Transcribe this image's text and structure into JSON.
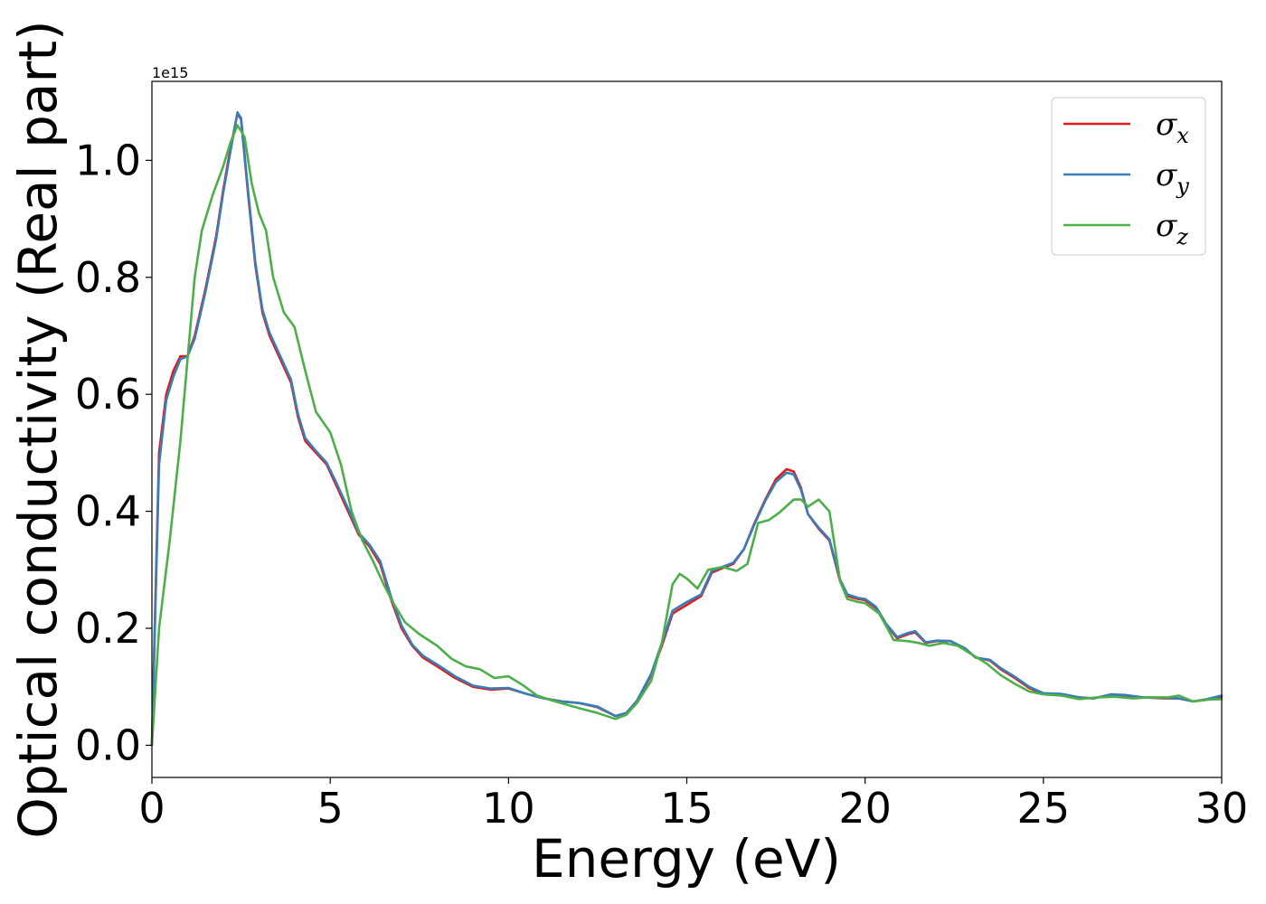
{
  "chart_data": {
    "type": "line",
    "xlabel": "Energy (eV)",
    "ylabel": "Optical conductivity (Real part)",
    "y_offset_label": "1e15",
    "xlim": [
      0,
      30
    ],
    "ylim": [
      -0.055,
      1.135
    ],
    "x_ticks": [
      0,
      5,
      10,
      15,
      20,
      25,
      30
    ],
    "x_tick_labels": [
      "0",
      "5",
      "10",
      "15",
      "20",
      "25",
      "30"
    ],
    "y_ticks": [
      0.0,
      0.2,
      0.4,
      0.6,
      0.8,
      1.0
    ],
    "y_tick_labels": [
      "0.0",
      "0.2",
      "0.4",
      "0.6",
      "0.8",
      "1.0"
    ],
    "grid": false,
    "legend_position": "top-right",
    "series": [
      {
        "name": "σx",
        "legend_symbol": "σ",
        "legend_subscript": "x",
        "color": "#e41a1c",
        "points": [
          [
            0,
            0
          ],
          [
            0.1,
            0.25
          ],
          [
            0.2,
            0.5
          ],
          [
            0.4,
            0.6
          ],
          [
            0.6,
            0.64
          ],
          [
            0.8,
            0.665
          ],
          [
            1.0,
            0.665
          ],
          [
            1.2,
            0.7
          ],
          [
            1.5,
            0.78
          ],
          [
            1.8,
            0.87
          ],
          [
            2.0,
            0.95
          ],
          [
            2.2,
            1.02
          ],
          [
            2.4,
            1.08
          ],
          [
            2.5,
            1.07
          ],
          [
            2.7,
            0.94
          ],
          [
            2.9,
            0.82
          ],
          [
            3.1,
            0.74
          ],
          [
            3.3,
            0.7
          ],
          [
            3.6,
            0.66
          ],
          [
            3.9,
            0.62
          ],
          [
            4.1,
            0.56
          ],
          [
            4.3,
            0.52
          ],
          [
            4.6,
            0.5
          ],
          [
            4.9,
            0.48
          ],
          [
            5.2,
            0.44
          ],
          [
            5.5,
            0.4
          ],
          [
            5.8,
            0.36
          ],
          [
            6.1,
            0.34
          ],
          [
            6.4,
            0.31
          ],
          [
            6.7,
            0.25
          ],
          [
            7.0,
            0.2
          ],
          [
            7.3,
            0.17
          ],
          [
            7.6,
            0.15
          ],
          [
            8.0,
            0.135
          ],
          [
            8.5,
            0.115
          ],
          [
            9.0,
            0.1
          ],
          [
            9.5,
            0.095
          ],
          [
            10.0,
            0.097
          ],
          [
            10.5,
            0.088
          ],
          [
            11.0,
            0.08
          ],
          [
            11.5,
            0.075
          ],
          [
            12.0,
            0.072
          ],
          [
            12.5,
            0.065
          ],
          [
            13.0,
            0.05
          ],
          [
            13.3,
            0.055
          ],
          [
            13.6,
            0.075
          ],
          [
            14.0,
            0.12
          ],
          [
            14.3,
            0.17
          ],
          [
            14.6,
            0.225
          ],
          [
            15.0,
            0.24
          ],
          [
            15.4,
            0.255
          ],
          [
            15.7,
            0.295
          ],
          [
            16.0,
            0.303
          ],
          [
            16.3,
            0.31
          ],
          [
            16.6,
            0.335
          ],
          [
            16.9,
            0.38
          ],
          [
            17.2,
            0.42
          ],
          [
            17.5,
            0.455
          ],
          [
            17.8,
            0.472
          ],
          [
            18.0,
            0.468
          ],
          [
            18.2,
            0.44
          ],
          [
            18.4,
            0.395
          ],
          [
            18.7,
            0.37
          ],
          [
            19.0,
            0.35
          ],
          [
            19.3,
            0.28
          ],
          [
            19.5,
            0.255
          ],
          [
            19.8,
            0.25
          ],
          [
            20.0,
            0.248
          ],
          [
            20.3,
            0.235
          ],
          [
            20.6,
            0.205
          ],
          [
            20.9,
            0.183
          ],
          [
            21.2,
            0.19
          ],
          [
            21.4,
            0.193
          ],
          [
            21.7,
            0.175
          ],
          [
            22.0,
            0.178
          ],
          [
            22.4,
            0.178
          ],
          [
            22.8,
            0.165
          ],
          [
            23.1,
            0.15
          ],
          [
            23.5,
            0.145
          ],
          [
            23.8,
            0.13
          ],
          [
            24.2,
            0.115
          ],
          [
            24.6,
            0.098
          ],
          [
            25.0,
            0.088
          ],
          [
            25.5,
            0.087
          ],
          [
            26.0,
            0.082
          ],
          [
            26.4,
            0.08
          ],
          [
            26.9,
            0.087
          ],
          [
            27.3,
            0.085
          ],
          [
            27.8,
            0.082
          ],
          [
            28.4,
            0.08
          ],
          [
            28.8,
            0.08
          ],
          [
            29.2,
            0.075
          ],
          [
            29.6,
            0.078
          ],
          [
            30.0,
            0.083
          ]
        ]
      },
      {
        "name": "σy",
        "legend_symbol": "σ",
        "legend_subscript": "y",
        "color": "#377eb8",
        "points": [
          [
            0,
            0
          ],
          [
            0.1,
            0.24
          ],
          [
            0.2,
            0.48
          ],
          [
            0.4,
            0.59
          ],
          [
            0.6,
            0.63
          ],
          [
            0.8,
            0.66
          ],
          [
            1.0,
            0.665
          ],
          [
            1.2,
            0.695
          ],
          [
            1.5,
            0.775
          ],
          [
            1.8,
            0.865
          ],
          [
            2.0,
            0.945
          ],
          [
            2.2,
            1.015
          ],
          [
            2.4,
            1.082
          ],
          [
            2.5,
            1.072
          ],
          [
            2.7,
            0.945
          ],
          [
            2.9,
            0.825
          ],
          [
            3.1,
            0.745
          ],
          [
            3.3,
            0.705
          ],
          [
            3.6,
            0.665
          ],
          [
            3.9,
            0.625
          ],
          [
            4.1,
            0.565
          ],
          [
            4.3,
            0.525
          ],
          [
            4.6,
            0.503
          ],
          [
            4.9,
            0.483
          ],
          [
            5.2,
            0.445
          ],
          [
            5.5,
            0.405
          ],
          [
            5.8,
            0.363
          ],
          [
            6.1,
            0.343
          ],
          [
            6.4,
            0.315
          ],
          [
            6.7,
            0.255
          ],
          [
            7.0,
            0.205
          ],
          [
            7.3,
            0.172
          ],
          [
            7.6,
            0.153
          ],
          [
            8.0,
            0.138
          ],
          [
            8.5,
            0.118
          ],
          [
            9.0,
            0.102
          ],
          [
            9.5,
            0.097
          ],
          [
            10.0,
            0.098
          ],
          [
            10.5,
            0.088
          ],
          [
            11.0,
            0.08
          ],
          [
            11.5,
            0.075
          ],
          [
            12.0,
            0.072
          ],
          [
            12.5,
            0.066
          ],
          [
            13.0,
            0.05
          ],
          [
            13.3,
            0.055
          ],
          [
            13.6,
            0.076
          ],
          [
            14.0,
            0.122
          ],
          [
            14.3,
            0.175
          ],
          [
            14.6,
            0.23
          ],
          [
            15.0,
            0.245
          ],
          [
            15.4,
            0.258
          ],
          [
            15.7,
            0.298
          ],
          [
            16.0,
            0.305
          ],
          [
            16.3,
            0.312
          ],
          [
            16.6,
            0.335
          ],
          [
            16.9,
            0.378
          ],
          [
            17.2,
            0.418
          ],
          [
            17.5,
            0.45
          ],
          [
            17.8,
            0.466
          ],
          [
            18.0,
            0.463
          ],
          [
            18.2,
            0.437
          ],
          [
            18.4,
            0.395
          ],
          [
            18.7,
            0.372
          ],
          [
            19.0,
            0.352
          ],
          [
            19.3,
            0.283
          ],
          [
            19.5,
            0.258
          ],
          [
            19.8,
            0.252
          ],
          [
            20.0,
            0.25
          ],
          [
            20.3,
            0.237
          ],
          [
            20.6,
            0.207
          ],
          [
            20.9,
            0.185
          ],
          [
            21.2,
            0.192
          ],
          [
            21.4,
            0.195
          ],
          [
            21.7,
            0.176
          ],
          [
            22.0,
            0.179
          ],
          [
            22.4,
            0.178
          ],
          [
            22.8,
            0.166
          ],
          [
            23.1,
            0.15
          ],
          [
            23.5,
            0.146
          ],
          [
            23.8,
            0.132
          ],
          [
            24.2,
            0.117
          ],
          [
            24.6,
            0.1
          ],
          [
            25.0,
            0.089
          ],
          [
            25.5,
            0.088
          ],
          [
            26.0,
            0.082
          ],
          [
            26.4,
            0.08
          ],
          [
            26.9,
            0.087
          ],
          [
            27.3,
            0.086
          ],
          [
            27.8,
            0.082
          ],
          [
            28.4,
            0.081
          ],
          [
            28.8,
            0.08
          ],
          [
            29.2,
            0.075
          ],
          [
            29.6,
            0.079
          ],
          [
            30.0,
            0.085
          ]
        ]
      },
      {
        "name": "σz",
        "legend_symbol": "σ",
        "legend_subscript": "z",
        "color": "#4daf4a",
        "points": [
          [
            0,
            0
          ],
          [
            0.2,
            0.2
          ],
          [
            0.5,
            0.35
          ],
          [
            0.8,
            0.52
          ],
          [
            1.0,
            0.66
          ],
          [
            1.2,
            0.8
          ],
          [
            1.4,
            0.88
          ],
          [
            1.7,
            0.94
          ],
          [
            2.0,
            0.99
          ],
          [
            2.2,
            1.03
          ],
          [
            2.4,
            1.06
          ],
          [
            2.6,
            1.04
          ],
          [
            2.8,
            0.96
          ],
          [
            3.0,
            0.91
          ],
          [
            3.2,
            0.88
          ],
          [
            3.4,
            0.8
          ],
          [
            3.7,
            0.74
          ],
          [
            4.0,
            0.715
          ],
          [
            4.3,
            0.64
          ],
          [
            4.6,
            0.57
          ],
          [
            5.0,
            0.535
          ],
          [
            5.3,
            0.48
          ],
          [
            5.6,
            0.4
          ],
          [
            5.9,
            0.35
          ],
          [
            6.2,
            0.315
          ],
          [
            6.5,
            0.275
          ],
          [
            6.8,
            0.24
          ],
          [
            7.1,
            0.21
          ],
          [
            7.5,
            0.19
          ],
          [
            8.0,
            0.17
          ],
          [
            8.4,
            0.148
          ],
          [
            8.8,
            0.135
          ],
          [
            9.2,
            0.13
          ],
          [
            9.6,
            0.115
          ],
          [
            10.0,
            0.118
          ],
          [
            10.4,
            0.103
          ],
          [
            10.8,
            0.085
          ],
          [
            11.2,
            0.077
          ],
          [
            11.6,
            0.07
          ],
          [
            12.0,
            0.063
          ],
          [
            12.5,
            0.055
          ],
          [
            13.0,
            0.045
          ],
          [
            13.3,
            0.052
          ],
          [
            13.6,
            0.072
          ],
          [
            14.0,
            0.11
          ],
          [
            14.3,
            0.175
          ],
          [
            14.6,
            0.275
          ],
          [
            14.8,
            0.293
          ],
          [
            15.0,
            0.285
          ],
          [
            15.3,
            0.268
          ],
          [
            15.6,
            0.3
          ],
          [
            16.0,
            0.305
          ],
          [
            16.4,
            0.298
          ],
          [
            16.7,
            0.31
          ],
          [
            17.0,
            0.38
          ],
          [
            17.3,
            0.385
          ],
          [
            17.6,
            0.398
          ],
          [
            18.0,
            0.42
          ],
          [
            18.2,
            0.42
          ],
          [
            18.4,
            0.408
          ],
          [
            18.7,
            0.42
          ],
          [
            19.0,
            0.4
          ],
          [
            19.3,
            0.28
          ],
          [
            19.5,
            0.25
          ],
          [
            19.8,
            0.245
          ],
          [
            20.0,
            0.243
          ],
          [
            20.4,
            0.225
          ],
          [
            20.8,
            0.18
          ],
          [
            21.2,
            0.178
          ],
          [
            21.5,
            0.175
          ],
          [
            21.8,
            0.17
          ],
          [
            22.2,
            0.175
          ],
          [
            22.6,
            0.17
          ],
          [
            23.0,
            0.155
          ],
          [
            23.4,
            0.14
          ],
          [
            23.8,
            0.12
          ],
          [
            24.2,
            0.105
          ],
          [
            24.6,
            0.092
          ],
          [
            25.0,
            0.087
          ],
          [
            25.5,
            0.085
          ],
          [
            26.0,
            0.079
          ],
          [
            26.5,
            0.082
          ],
          [
            27.0,
            0.083
          ],
          [
            27.5,
            0.08
          ],
          [
            28.0,
            0.082
          ],
          [
            28.5,
            0.082
          ],
          [
            28.8,
            0.085
          ],
          [
            29.2,
            0.075
          ],
          [
            29.6,
            0.078
          ],
          [
            30.0,
            0.079
          ]
        ]
      }
    ]
  }
}
